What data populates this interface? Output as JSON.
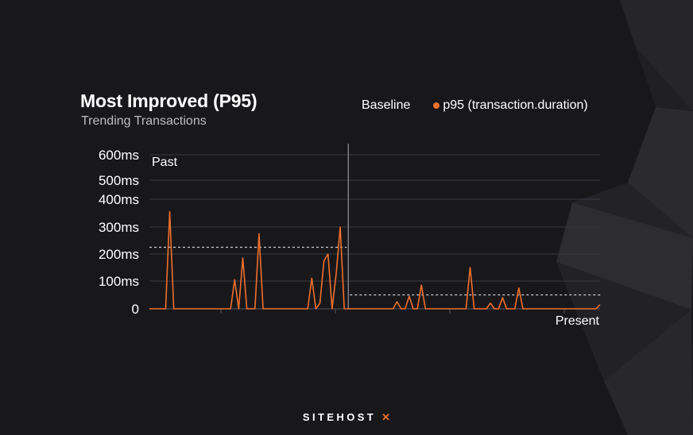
{
  "title": "Most Improved (P95)",
  "subtitle": "Trending Transactions",
  "legend": {
    "baseline_label": "Baseline",
    "series_label": "p95 (transaction.duration)",
    "series_color": "#f06f2c"
  },
  "brand": {
    "name": "SITEHOST",
    "mark_icon": "x-mark-icon"
  },
  "chart_data": {
    "type": "line",
    "ytick_labels": [
      {
        "label": "0",
        "value": 0
      },
      {
        "label": "100ms",
        "value": 100
      },
      {
        "label": "200ms",
        "value": 200
      },
      {
        "label": "300ms",
        "value": 300
      },
      {
        "label": "400ms",
        "value": 400
      },
      {
        "label": "500ms",
        "value": 500
      },
      {
        "label": "600ms",
        "value": 600
      }
    ],
    "past_label": "Past",
    "present_label": "Present",
    "before_baseline_ms": 225,
    "after_baseline_ms": 50,
    "divider_index": 49,
    "values": [
      0,
      0,
      0,
      0,
      0,
      355,
      0,
      0,
      0,
      0,
      0,
      0,
      0,
      0,
      0,
      0,
      0,
      0,
      0,
      0,
      0,
      105,
      0,
      185,
      0,
      0,
      0,
      275,
      0,
      0,
      0,
      0,
      0,
      0,
      0,
      0,
      0,
      0,
      0,
      0,
      110,
      0,
      20,
      175,
      200,
      0,
      125,
      300,
      0,
      0,
      0,
      0,
      0,
      0,
      0,
      0,
      0,
      0,
      0,
      0,
      0,
      25,
      0,
      0,
      45,
      0,
      0,
      85,
      0,
      0,
      0,
      0,
      0,
      0,
      0,
      0,
      0,
      0,
      0,
      150,
      0,
      0,
      0,
      0,
      20,
      0,
      0,
      40,
      0,
      0,
      0,
      75,
      0,
      0,
      0,
      0,
      0,
      0,
      0,
      0,
      0,
      0,
      0,
      0,
      0,
      0,
      0,
      0,
      0,
      0,
      0,
      15
    ]
  }
}
